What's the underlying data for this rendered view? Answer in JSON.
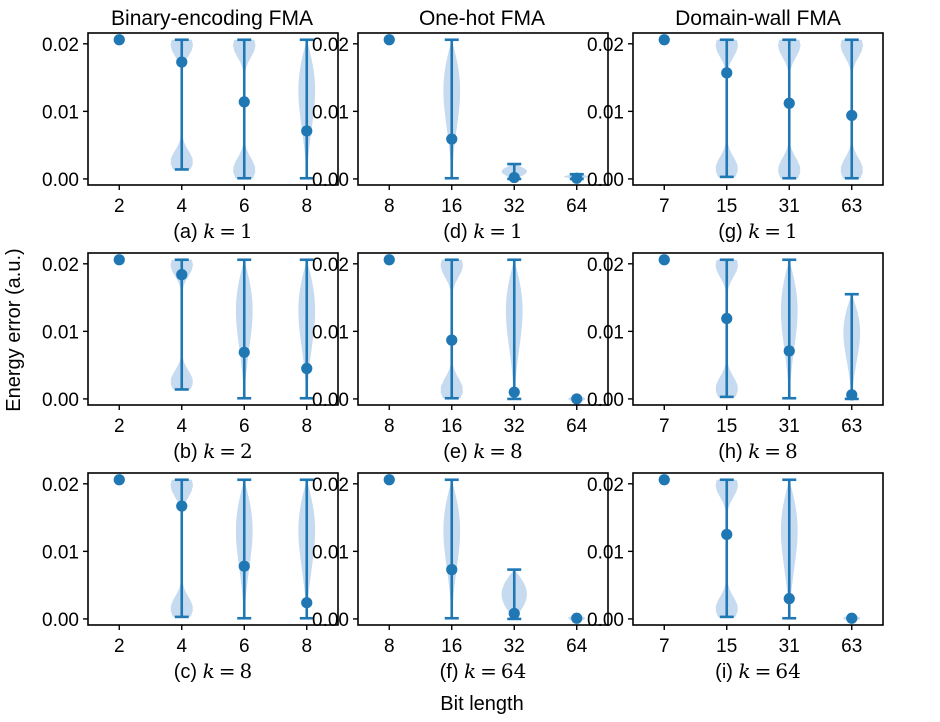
{
  "figure": {
    "ylabel": "Energy error (a.u.)",
    "xlabel": "Bit length",
    "column_titles": [
      "Binary-encoding FMA",
      "One-hot FMA",
      "Domain-wall FMA"
    ],
    "colors": {
      "accent": "#1f77b4",
      "violin_fill": "#c6dbef",
      "axis": "#000000"
    }
  },
  "chart_data": [
    {
      "type": "violin",
      "id": "a",
      "caption": {
        "prefix": "(a) ",
        "var": "k",
        "value": "1"
      },
      "categories": [
        "2",
        "4",
        "6",
        "8"
      ],
      "ylim": [
        -0.0009,
        0.0216
      ],
      "yticks": [
        0.0,
        0.01,
        0.02
      ],
      "ytick_labels": [
        "0.00",
        "0.01",
        "0.02"
      ],
      "series": [
        {
          "min": 0.0206,
          "max": 0.0206,
          "mean": 0.0206,
          "caps": false,
          "width": 0.15
        },
        {
          "min": 0.0014,
          "max": 0.0206,
          "mean": 0.0173,
          "caps": true,
          "width": 0.4
        },
        {
          "min": 0.0001,
          "max": 0.0206,
          "mean": 0.0114,
          "caps": true,
          "width": 0.4
        },
        {
          "min": 0.0001,
          "max": 0.0206,
          "mean": 0.0071,
          "caps": true,
          "width": 0.4
        }
      ]
    },
    {
      "type": "violin",
      "id": "b",
      "caption": {
        "prefix": "(b) ",
        "var": "k",
        "value": "2"
      },
      "categories": [
        "2",
        "4",
        "6",
        "8"
      ],
      "ylim": [
        -0.0009,
        0.0216
      ],
      "yticks": [
        0.0,
        0.01,
        0.02
      ],
      "ytick_labels": [
        "0.00",
        "0.01",
        "0.02"
      ],
      "series": [
        {
          "min": 0.0206,
          "max": 0.0206,
          "mean": 0.0206,
          "caps": false,
          "width": 0.15
        },
        {
          "min": 0.0014,
          "max": 0.0206,
          "mean": 0.0184,
          "caps": true,
          "width": 0.4
        },
        {
          "min": 0.0001,
          "max": 0.0206,
          "mean": 0.0069,
          "caps": true,
          "width": 0.4
        },
        {
          "min": 0.0001,
          "max": 0.0206,
          "mean": 0.0045,
          "caps": true,
          "width": 0.4
        }
      ]
    },
    {
      "type": "violin",
      "id": "c",
      "caption": {
        "prefix": "(c) ",
        "var": "k",
        "value": "8"
      },
      "categories": [
        "2",
        "4",
        "6",
        "8"
      ],
      "ylim": [
        -0.0009,
        0.0216
      ],
      "yticks": [
        0.0,
        0.01,
        0.02
      ],
      "ytick_labels": [
        "0.00",
        "0.01",
        "0.02"
      ],
      "series": [
        {
          "min": 0.0206,
          "max": 0.0206,
          "mean": 0.0206,
          "caps": false,
          "width": 0.15
        },
        {
          "min": 0.0003,
          "max": 0.0206,
          "mean": 0.0167,
          "caps": true,
          "width": 0.4
        },
        {
          "min": 0.0001,
          "max": 0.0206,
          "mean": 0.0078,
          "caps": true,
          "width": 0.4
        },
        {
          "min": 0.0001,
          "max": 0.0206,
          "mean": 0.0024,
          "caps": true,
          "width": 0.4
        }
      ]
    },
    {
      "type": "violin",
      "id": "d",
      "caption": {
        "prefix": "(d) ",
        "var": "k",
        "value": "1"
      },
      "categories": [
        "8",
        "16",
        "32",
        "64"
      ],
      "ylim": [
        -0.0009,
        0.0216
      ],
      "yticks": [
        0.0,
        0.01,
        0.02
      ],
      "ytick_labels": [
        "0.00",
        "0.01",
        "0.02"
      ],
      "series": [
        {
          "min": 0.0206,
          "max": 0.0206,
          "mean": 0.0206,
          "caps": false,
          "width": 0.15
        },
        {
          "min": 0.0001,
          "max": 0.0206,
          "mean": 0.0059,
          "caps": true,
          "width": 0.4
        },
        {
          "min": 0.0,
          "max": 0.0022,
          "mean": 0.0002,
          "caps": true,
          "width": 0.45
        },
        {
          "min": 0.0,
          "max": 0.0007,
          "mean": 0.0001,
          "caps": true,
          "width": 0.45
        }
      ]
    },
    {
      "type": "violin",
      "id": "e",
      "caption": {
        "prefix": "(e) ",
        "var": "k",
        "value": "8"
      },
      "categories": [
        "8",
        "16",
        "32",
        "64"
      ],
      "ylim": [
        -0.0009,
        0.0216
      ],
      "yticks": [
        0.0,
        0.01,
        0.02
      ],
      "ytick_labels": [
        "0.00",
        "0.01",
        "0.02"
      ],
      "series": [
        {
          "min": 0.0206,
          "max": 0.0206,
          "mean": 0.0206,
          "caps": false,
          "width": 0.15
        },
        {
          "min": 0.0001,
          "max": 0.0206,
          "mean": 0.0087,
          "caps": true,
          "width": 0.4
        },
        {
          "min": 0.0,
          "max": 0.0206,
          "mean": 0.001,
          "caps": true,
          "width": 0.4
        },
        {
          "min": 0.0,
          "max": 0.0001,
          "mean": 0.0,
          "caps": false,
          "width": 0.3
        }
      ]
    },
    {
      "type": "violin",
      "id": "f",
      "caption": {
        "prefix": "(f) ",
        "var": "k",
        "value": "64"
      },
      "categories": [
        "8",
        "16",
        "32",
        "64"
      ],
      "ylim": [
        -0.0009,
        0.0216
      ],
      "yticks": [
        0.0,
        0.01,
        0.02
      ],
      "ytick_labels": [
        "0.00",
        "0.01",
        "0.02"
      ],
      "series": [
        {
          "min": 0.0206,
          "max": 0.0206,
          "mean": 0.0206,
          "caps": false,
          "width": 0.15
        },
        {
          "min": 0.0001,
          "max": 0.0206,
          "mean": 0.0073,
          "caps": true,
          "width": 0.4
        },
        {
          "min": 0.0,
          "max": 0.0073,
          "mean": 0.0008,
          "caps": true,
          "width": 0.45
        },
        {
          "min": 0.0,
          "max": 0.0002,
          "mean": 0.0001,
          "caps": false,
          "width": 0.3
        }
      ]
    },
    {
      "type": "violin",
      "id": "g",
      "caption": {
        "prefix": "(g) ",
        "var": "k",
        "value": "1"
      },
      "categories": [
        "7",
        "15",
        "31",
        "63"
      ],
      "ylim": [
        -0.0009,
        0.0216
      ],
      "yticks": [
        0.0,
        0.01,
        0.02
      ],
      "ytick_labels": [
        "0.00",
        "0.01",
        "0.02"
      ],
      "series": [
        {
          "min": 0.0206,
          "max": 0.0206,
          "mean": 0.0206,
          "caps": false,
          "width": 0.15
        },
        {
          "min": 0.0003,
          "max": 0.0206,
          "mean": 0.0157,
          "caps": true,
          "width": 0.4
        },
        {
          "min": 0.0001,
          "max": 0.0206,
          "mean": 0.0112,
          "caps": true,
          "width": 0.4
        },
        {
          "min": 0.0001,
          "max": 0.0206,
          "mean": 0.0094,
          "caps": true,
          "width": 0.4
        }
      ]
    },
    {
      "type": "violin",
      "id": "h",
      "caption": {
        "prefix": "(h) ",
        "var": "k",
        "value": "8"
      },
      "categories": [
        "7",
        "15",
        "31",
        "63"
      ],
      "ylim": [
        -0.0009,
        0.0216
      ],
      "yticks": [
        0.0,
        0.01,
        0.02
      ],
      "ytick_labels": [
        "0.00",
        "0.01",
        "0.02"
      ],
      "series": [
        {
          "min": 0.0206,
          "max": 0.0206,
          "mean": 0.0206,
          "caps": false,
          "width": 0.15
        },
        {
          "min": 0.0003,
          "max": 0.0206,
          "mean": 0.0119,
          "caps": true,
          "width": 0.4
        },
        {
          "min": 0.0001,
          "max": 0.0206,
          "mean": 0.0071,
          "caps": true,
          "width": 0.4
        },
        {
          "min": 0.0,
          "max": 0.0155,
          "mean": 0.0006,
          "caps": true,
          "width": 0.4
        }
      ]
    },
    {
      "type": "violin",
      "id": "i",
      "caption": {
        "prefix": "(i) ",
        "var": "k",
        "value": "64"
      },
      "categories": [
        "7",
        "15",
        "31",
        "63"
      ],
      "ylim": [
        -0.0009,
        0.0216
      ],
      "yticks": [
        0.0,
        0.01,
        0.02
      ],
      "ytick_labels": [
        "0.00",
        "0.01",
        "0.02"
      ],
      "series": [
        {
          "min": 0.0206,
          "max": 0.0206,
          "mean": 0.0206,
          "caps": false,
          "width": 0.15
        },
        {
          "min": 0.0003,
          "max": 0.0206,
          "mean": 0.0125,
          "caps": true,
          "width": 0.4
        },
        {
          "min": 0.0001,
          "max": 0.0206,
          "mean": 0.003,
          "caps": true,
          "width": 0.4
        },
        {
          "min": 0.0,
          "max": 0.0002,
          "mean": 0.0001,
          "caps": false,
          "width": 0.3
        }
      ]
    }
  ]
}
